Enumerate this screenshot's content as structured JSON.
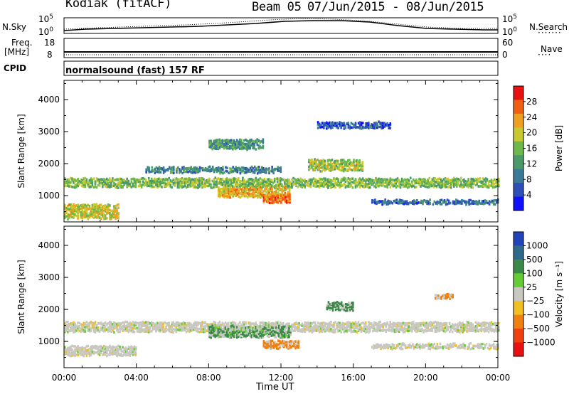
{
  "header": {
    "station": "Kodiak (fitACF)",
    "beam": "Beam 05",
    "dates": "07/Jun/2015 - 08/Jun/2015"
  },
  "noise_panel": {
    "left_label": "N.Sky",
    "right_label": "N.Search",
    "left_ticks": [
      "10^5",
      "10^0"
    ],
    "right_ticks": [
      "10^5",
      "10^0"
    ]
  },
  "freq_panel": {
    "left_label_1": "Freq.",
    "left_label_2": "[MHz]",
    "right_label": "Nave",
    "left_ticks": [
      "18",
      "8"
    ],
    "right_ticks": [
      "60",
      "0"
    ]
  },
  "cpid_panel": {
    "label": "CPID",
    "text": "normalsound (fast) 157 RF"
  },
  "chart_data": [
    {
      "type": "heatmap",
      "title": "",
      "ylabel": "Slant Range [km]",
      "xlabel": "",
      "x_ticks": [
        "00:00",
        "04:00",
        "08:00",
        "12:00",
        "16:00",
        "20:00",
        "00:00"
      ],
      "ylim": [
        180,
        4600
      ],
      "y_ticks": [
        1000,
        2000,
        3000,
        4000
      ],
      "xlim_hours": [
        0,
        24
      ],
      "colorbar": {
        "label": "Power [dB]",
        "range": [
          0,
          32
        ],
        "ticks": [
          4,
          8,
          12,
          16,
          20,
          24,
          28
        ],
        "colors": [
          "#1010ff",
          "#2f4fb8",
          "#3c7a9a",
          "#4a9a6a",
          "#6cb84a",
          "#c8c830",
          "#f0a020",
          "#f06010",
          "#e81010"
        ]
      },
      "bands": [
        {
          "t0": 0,
          "t1": 24,
          "r_center": 1400,
          "r_width": 280,
          "value": 16
        },
        {
          "t0": 8.5,
          "t1": 12.5,
          "r_center": 1100,
          "r_width": 300,
          "value": 22
        },
        {
          "t0": 11.0,
          "t1": 12.5,
          "r_center": 900,
          "r_width": 250,
          "value": 26
        },
        {
          "t0": 13.5,
          "t1": 16.5,
          "r_center": 1950,
          "r_width": 350,
          "value": 18
        },
        {
          "t0": 4.5,
          "t1": 12,
          "r_center": 1800,
          "r_width": 180,
          "value": 10
        },
        {
          "t0": 0,
          "t1": 3,
          "r_center": 500,
          "r_width": 450,
          "value": 20
        },
        {
          "t0": 17,
          "t1": 24,
          "r_center": 800,
          "r_width": 120,
          "value": 8
        },
        {
          "t0": 8,
          "t1": 11,
          "r_center": 2600,
          "r_width": 300,
          "value": 12
        },
        {
          "t0": 14,
          "t1": 18,
          "r_center": 3200,
          "r_width": 200,
          "value": 6
        }
      ]
    },
    {
      "type": "heatmap",
      "title": "",
      "ylabel": "Slant Range [km]",
      "xlabel": "Time UT",
      "x_ticks": [
        "00:00",
        "04:00",
        "08:00",
        "12:00",
        "16:00",
        "20:00",
        "00:00"
      ],
      "ylim": [
        180,
        4600
      ],
      "y_ticks": [
        1000,
        2000,
        3000,
        4000
      ],
      "xlim_hours": [
        0,
        24
      ],
      "colorbar": {
        "label": "Velocity [m s⁻¹]",
        "tick_labels": [
          "1000",
          "500",
          "100",
          "25",
          "−25",
          "−100",
          "−500",
          "−1000"
        ],
        "colors": [
          "#2244bb",
          "#2f6a8a",
          "#3c8a4a",
          "#66cc33",
          "#c8c8c0",
          "#f0c020",
          "#f08010",
          "#f04010",
          "#e81010"
        ]
      },
      "bands": [
        {
          "t0": 0,
          "t1": 24,
          "r_center": 1450,
          "r_width": 300,
          "value": 0
        },
        {
          "t0": 0,
          "t1": 4,
          "r_center": 700,
          "r_width": 300,
          "value": 0
        },
        {
          "t0": 8,
          "t1": 12.5,
          "r_center": 1300,
          "r_width": 350,
          "value": 120
        },
        {
          "t0": 11,
          "t1": 13,
          "r_center": 900,
          "r_width": 250,
          "value": -300
        },
        {
          "t0": 14.5,
          "t1": 16,
          "r_center": 2100,
          "r_width": 250,
          "value": 200
        },
        {
          "t0": 17,
          "t1": 24,
          "r_center": 850,
          "r_width": 150,
          "value": 0
        },
        {
          "t0": 20.5,
          "t1": 21.5,
          "r_center": 2400,
          "r_width": 150,
          "value": -300
        }
      ]
    }
  ]
}
